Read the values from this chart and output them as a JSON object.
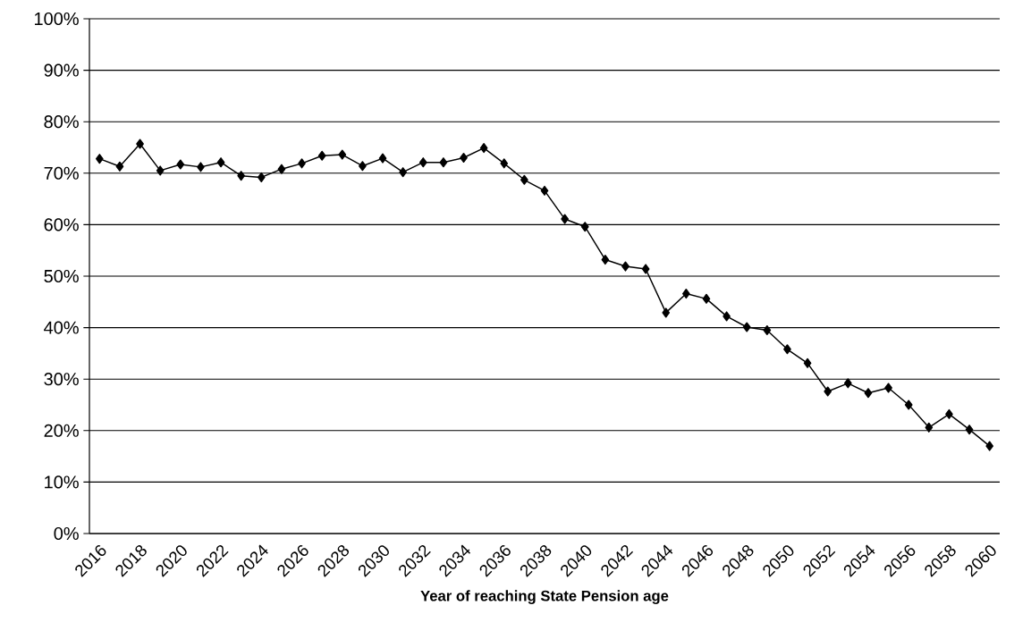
{
  "chart_data": {
    "type": "line",
    "xlabel": "Year of reaching State Pension age",
    "categories": [
      "2016",
      null,
      "2018",
      null,
      "2020",
      null,
      "2022",
      null,
      "2024",
      null,
      "2026",
      null,
      "2028",
      null,
      "2030",
      null,
      "2032",
      null,
      "2034",
      null,
      "2036",
      null,
      "2038",
      null,
      "2040",
      null,
      "2042",
      null,
      "2044",
      null,
      "2046",
      null,
      "2048",
      null,
      "2050",
      null,
      "2052",
      null,
      "2054",
      null,
      "2056",
      null,
      "2058",
      null,
      "2060"
    ],
    "series": [
      {
        "color": "#000000",
        "values": [
          72.8,
          71.3,
          75.7,
          70.5,
          71.7,
          71.2,
          72.1,
          69.5,
          69.2,
          70.8,
          71.9,
          73.4,
          73.6,
          71.4,
          72.9,
          70.2,
          72.1,
          72.1,
          73.0,
          74.9,
          71.9,
          68.7,
          66.6,
          61.1,
          59.6,
          53.2,
          51.9,
          51.4,
          42.9,
          46.6,
          45.6,
          42.2,
          40.1,
          39.5,
          35.8,
          33.1,
          27.6,
          29.2,
          27.3,
          28.3,
          25.0,
          20.6,
          23.2,
          20.2,
          17.0
        ]
      }
    ],
    "ylim": [
      0,
      100
    ],
    "yticks": [
      {
        "value": 0,
        "label": "0%"
      },
      {
        "value": 10,
        "label": "10%"
      },
      {
        "value": 20,
        "label": "20%"
      },
      {
        "value": 30,
        "label": "30%"
      },
      {
        "value": 40,
        "label": "40%"
      },
      {
        "value": 50,
        "label": "50%"
      },
      {
        "value": 60,
        "label": "60%"
      },
      {
        "value": 70,
        "label": "70%"
      },
      {
        "value": 80,
        "label": "80%"
      },
      {
        "value": 90,
        "label": "90%"
      },
      {
        "value": 100,
        "label": "100%"
      }
    ],
    "grid": "y",
    "marker": "diamond",
    "line_style": "solid"
  }
}
